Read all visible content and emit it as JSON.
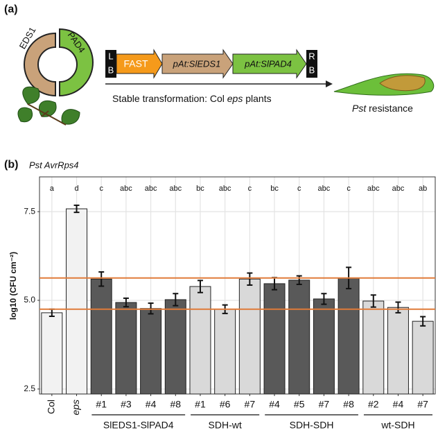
{
  "panel_a": {
    "label": "(a)",
    "protein_left": "EDS1",
    "protein_right": "PAD4",
    "construct": {
      "left_border": [
        "L",
        "B"
      ],
      "parts": [
        "FAST",
        "pAt:SlEDS1",
        "pAt:SlPAD4"
      ],
      "right_border": [
        "R",
        "B"
      ]
    },
    "transformation": [
      "Stable transformation: Col",
      "eps",
      "plants"
    ],
    "outcome": [
      "Pst",
      "resistance"
    ]
  },
  "chart_data": {
    "type": "bar",
    "panel_label": "(b)",
    "title": "Pst AvrRps4",
    "y_label": "log10 (CFU cm⁻²)",
    "categories": [
      "Col",
      "eps",
      "#1",
      "#3",
      "#4",
      "#8",
      "#1",
      "#6",
      "#7",
      "#4",
      "#5",
      "#7",
      "#8",
      "#2",
      "#4",
      "#7"
    ],
    "group_labels": [
      null,
      null,
      "SlEDS1-SlPAD4",
      null,
      null,
      null,
      "SDH-wt",
      null,
      null,
      "SDH-SDH",
      null,
      null,
      null,
      "wt-SDH",
      null,
      null
    ],
    "values": [
      4.65,
      7.58,
      5.6,
      4.94,
      4.77,
      5.02,
      5.39,
      4.75,
      5.6,
      5.47,
      5.57,
      5.04,
      5.63,
      4.98,
      4.8,
      4.41
    ],
    "errors": [
      0.1,
      0.1,
      0.2,
      0.12,
      0.15,
      0.17,
      0.17,
      0.12,
      0.17,
      0.17,
      0.12,
      0.15,
      0.3,
      0.17,
      0.15,
      0.13
    ],
    "letters": [
      "a",
      "d",
      "c",
      "abc",
      "abc",
      "abc",
      "bc",
      "abc",
      "c",
      "bc",
      "c",
      "abc",
      "c",
      "abc",
      "abc",
      "ab"
    ],
    "colors": [
      "#f2f2f2",
      "#f2f2f2",
      "#595959",
      "#595959",
      "#595959",
      "#595959",
      "#d9d9d9",
      "#d9d9d9",
      "#d9d9d9",
      "#595959",
      "#595959",
      "#595959",
      "#595959",
      "#d9d9d9",
      "#d9d9d9",
      "#d9d9d9"
    ],
    "reference_lines": [
      5.63,
      4.75
    ],
    "reference_color": "#e07b39",
    "ylim": [
      2.36,
      8.48
    ],
    "yticks": [
      2.5,
      {
        "value": 5,
        "label": "5.0"
      },
      7.5
    ],
    "grid": true
  }
}
